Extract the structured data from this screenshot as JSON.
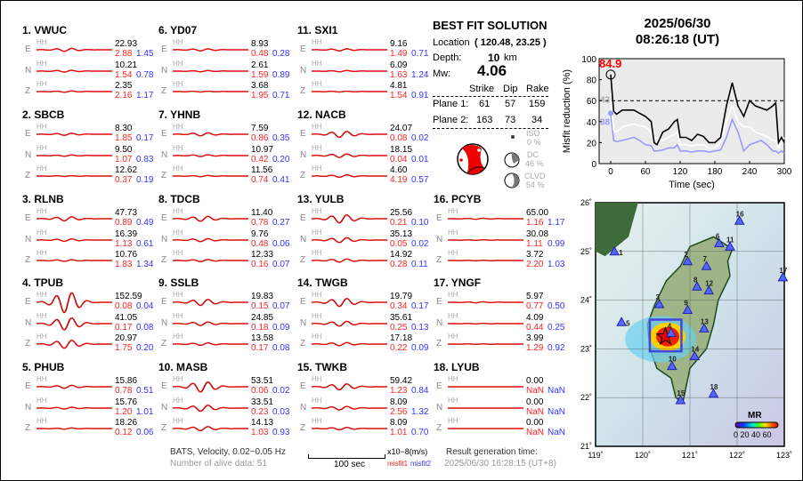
{
  "stations": [
    {
      "label": "1.  VWUC",
      "traces": [
        {
          "comp": "E",
          "band": "HH",
          "amp": "22.93",
          "misfit1": "2.88",
          "misfit2": "1.45"
        },
        {
          "comp": "N",
          "band": "HH",
          "amp": "10.21",
          "misfit1": "1.54",
          "misfit2": "0.78"
        },
        {
          "comp": "Z",
          "band": "HH",
          "amp": "2.35",
          "misfit1": "2.16",
          "misfit2": "1.17"
        }
      ]
    },
    {
      "label": "2.  SBCB",
      "traces": [
        {
          "comp": "E",
          "band": "HH",
          "amp": "8.30",
          "misfit1": "1.85",
          "misfit2": "0.17"
        },
        {
          "comp": "N",
          "band": "HH",
          "amp": "9.50",
          "misfit1": "1.07",
          "misfit2": "0.83"
        },
        {
          "comp": "Z",
          "band": "HH",
          "amp": "12.62",
          "misfit1": "0.37",
          "misfit2": "0.19"
        }
      ]
    },
    {
      "label": "3.  RLNB",
      "traces": [
        {
          "comp": "E",
          "band": "HH",
          "amp": "47.73",
          "misfit1": "0.89",
          "misfit2": "0.49"
        },
        {
          "comp": "N",
          "band": "HH",
          "amp": "16.39",
          "misfit1": "1.13",
          "misfit2": "0.61"
        },
        {
          "comp": "Z",
          "band": "HH",
          "amp": "10.76",
          "misfit1": "1.83",
          "misfit2": "1.34"
        }
      ]
    },
    {
      "label": "4.  TPUB",
      "traces": [
        {
          "comp": "E",
          "band": "HH",
          "amp": "152.59",
          "misfit1": "0.08",
          "misfit2": "0.04"
        },
        {
          "comp": "N",
          "band": "HH",
          "amp": "41.05",
          "misfit1": "0.17",
          "misfit2": "0.08"
        },
        {
          "comp": "Z",
          "band": "HH",
          "amp": "20.97",
          "misfit1": "1.75",
          "misfit2": "0.20"
        }
      ]
    },
    {
      "label": "5.  PHUB",
      "traces": [
        {
          "comp": "E",
          "band": "HH",
          "amp": "15.86",
          "misfit1": "0.78",
          "misfit2": "0.51"
        },
        {
          "comp": "N",
          "band": "HH",
          "amp": "15.76",
          "misfit1": "1.20",
          "misfit2": "1.01"
        },
        {
          "comp": "Z",
          "band": "HH",
          "amp": "18.26",
          "misfit1": "0.12",
          "misfit2": "0.06"
        }
      ]
    },
    {
      "label": "6.  YD07",
      "traces": [
        {
          "comp": "E",
          "band": "HH",
          "amp": "8.93",
          "misfit1": "0.48",
          "misfit2": "0.28"
        },
        {
          "comp": "N",
          "band": "HH",
          "amp": "2.61",
          "misfit1": "1.59",
          "misfit2": "0.89"
        },
        {
          "comp": "Z",
          "band": "HH",
          "amp": "3.68",
          "misfit1": "1.95",
          "misfit2": "0.71"
        }
      ]
    },
    {
      "label": "7.  YHNB",
      "traces": [
        {
          "comp": "E",
          "band": "HH",
          "amp": "7.59",
          "misfit1": "0.86",
          "misfit2": "0.35"
        },
        {
          "comp": "N",
          "band": "HH",
          "amp": "10.97",
          "misfit1": "0.42",
          "misfit2": "0.20"
        },
        {
          "comp": "Z",
          "band": "HH",
          "amp": "11.56",
          "misfit1": "0.74",
          "misfit2": "0.41"
        }
      ]
    },
    {
      "label": "8.  TDCB",
      "traces": [
        {
          "comp": "E",
          "band": "HH",
          "amp": "11.40",
          "misfit1": "0.78",
          "misfit2": "0.27"
        },
        {
          "comp": "N",
          "band": "HH",
          "amp": "9.76",
          "misfit1": "0.48",
          "misfit2": "0.06"
        },
        {
          "comp": "Z",
          "band": "HH",
          "amp": "12.33",
          "misfit1": "0.16",
          "misfit2": "0.07"
        }
      ]
    },
    {
      "label": "9.  SSLB",
      "traces": [
        {
          "comp": "E",
          "band": "HH",
          "amp": "19.83",
          "misfit1": "0.15",
          "misfit2": "0.07"
        },
        {
          "comp": "N",
          "band": "HH",
          "amp": "24.85",
          "misfit1": "0.18",
          "misfit2": "0.09"
        },
        {
          "comp": "Z",
          "band": "HH",
          "amp": "13.58",
          "misfit1": "0.17",
          "misfit2": "0.08"
        }
      ]
    },
    {
      "label": "10. MASB",
      "traces": [
        {
          "comp": "E",
          "band": "HH",
          "amp": "53.51",
          "misfit1": "0.06",
          "misfit2": "0.02"
        },
        {
          "comp": "N",
          "band": "HH",
          "amp": "33.51",
          "misfit1": "0.23",
          "misfit2": "0.03"
        },
        {
          "comp": "Z",
          "band": "HH",
          "amp": "14.13",
          "misfit1": "1.03",
          "misfit2": "0.93"
        }
      ]
    },
    {
      "label": "11. SXI1",
      "traces": [
        {
          "comp": "E",
          "band": "HH",
          "amp": "9.16",
          "misfit1": "1.49",
          "misfit2": "0.71"
        },
        {
          "comp": "N",
          "band": "HH",
          "amp": "6.09",
          "misfit1": "1.63",
          "misfit2": "1.24"
        },
        {
          "comp": "Z",
          "band": "HH",
          "amp": "4.81",
          "misfit1": "1.54",
          "misfit2": "0.91"
        }
      ]
    },
    {
      "label": "12. NACB",
      "traces": [
        {
          "comp": "E",
          "band": "HH",
          "amp": "24.07",
          "misfit1": "0.08",
          "misfit2": "0.02"
        },
        {
          "comp": "N",
          "band": "HH",
          "amp": "18.15",
          "misfit1": "0.04",
          "misfit2": "0.01"
        },
        {
          "comp": "Z",
          "band": "HH",
          "amp": "4.60",
          "misfit1": "4.19",
          "misfit2": "0.57"
        }
      ]
    },
    {
      "label": "13. YULB",
      "traces": [
        {
          "comp": "E",
          "band": "HH",
          "amp": "25.56",
          "misfit1": "0.21",
          "misfit2": "0.10"
        },
        {
          "comp": "N",
          "band": "HH",
          "amp": "35.13",
          "misfit1": "0.05",
          "misfit2": "0.02"
        },
        {
          "comp": "Z",
          "band": "HH",
          "amp": "14.92",
          "misfit1": "0.28",
          "misfit2": "0.11"
        }
      ]
    },
    {
      "label": "14. TWGB",
      "traces": [
        {
          "comp": "E",
          "band": "HH",
          "amp": "19.79",
          "misfit1": "0.34",
          "misfit2": "0.17"
        },
        {
          "comp": "N",
          "band": "HH",
          "amp": "35.61",
          "misfit1": "0.25",
          "misfit2": "0.13"
        },
        {
          "comp": "Z",
          "band": "HH",
          "amp": "17.18",
          "misfit1": "0.22",
          "misfit2": "0.09"
        }
      ]
    },
    {
      "label": "15. TWKB",
      "traces": [
        {
          "comp": "E",
          "band": "HH",
          "amp": "59.42",
          "misfit1": "1.23",
          "misfit2": "0.84"
        },
        {
          "comp": "N",
          "band": "HH",
          "amp": "8.09",
          "misfit1": "2.56",
          "misfit2": "1.32"
        },
        {
          "comp": "Z",
          "band": "HH",
          "amp": "8.09",
          "misfit1": "1.01",
          "misfit2": "0.70"
        }
      ]
    },
    {
      "label": "16. PCYB",
      "traces": [
        {
          "comp": "E",
          "band": "HH",
          "amp": "65.00",
          "misfit1": "1.16",
          "misfit2": "1.17"
        },
        {
          "comp": "N",
          "band": "HH",
          "amp": "30.08",
          "misfit1": "1.11",
          "misfit2": "0.99"
        },
        {
          "comp": "Z",
          "band": "HH",
          "amp": "3.72",
          "misfit1": "2.20",
          "misfit2": "1.03"
        }
      ]
    },
    {
      "label": "17. YNGF",
      "traces": [
        {
          "comp": "E",
          "band": "HH",
          "amp": "5.97",
          "misfit1": "0.77",
          "misfit2": "0.50"
        },
        {
          "comp": "N",
          "band": "HH",
          "amp": "4.09",
          "misfit1": "0.44",
          "misfit2": "0.25"
        },
        {
          "comp": "Z",
          "band": "HH",
          "amp": "3.99",
          "misfit1": "1.29",
          "misfit2": "0.92"
        }
      ]
    },
    {
      "label": "18. LYUB",
      "traces": [
        {
          "comp": "E",
          "band": "HH",
          "amp": "0.00",
          "misfit1": "NaN",
          "misfit2": "NaN"
        },
        {
          "comp": "N",
          "band": "HH",
          "amp": "0.00",
          "misfit1": "NaN",
          "misfit2": "NaN"
        },
        {
          "comp": "Z",
          "band": "HH",
          "amp": "0.00",
          "misfit1": "NaN",
          "misfit2": "NaN"
        }
      ]
    }
  ],
  "solution": {
    "title": "BEST FIT SOLUTION",
    "location_label": "Location",
    "location_value": "( 120.48,  23.25 )",
    "depth_label": "Depth:",
    "depth_value": "10",
    "depth_unit": "km",
    "mw_label": "Mw:",
    "mw_value": "4.06",
    "headers": [
      "Strike",
      "Dip",
      "Rake"
    ],
    "planes": [
      {
        "label": "Plane 1:",
        "values": [
          "61",
          "57",
          "159"
        ]
      },
      {
        "label": "Plane 2:",
        "values": [
          "163",
          "73",
          "34"
        ]
      }
    ],
    "iso_label": "ISO",
    "iso_value": "0  %",
    "dc_label": "DC",
    "dc_value": "46 %",
    "clvd_label": "CLVD",
    "clvd_value": "54 %"
  },
  "footer": {
    "filter": "BATS, Velocity, 0.02−0.05 Hz",
    "alive": "Number of alive data: 51",
    "unit": "x10−8(m/s)",
    "scale": "100 sec",
    "misfit1": "misfit1",
    "misfit2": "misfit2",
    "gen_label": "Result generation time:",
    "gen_time": "2025/06/30 16:28:15 (UT+8)"
  },
  "header": {
    "date": "2025/06/30",
    "time": "08:26:18  (UT)"
  },
  "colors": {
    "observed": "#000000",
    "synthetic": "#ff0000",
    "misfit1": "#ff2222",
    "misfit2": "#3333ff",
    "mr_black": "#000000",
    "mr_white": "#ffffff",
    "mr_blue": "#9999ff"
  },
  "chart_data": {
    "type": "line",
    "xlabel": "Time (sec)",
    "ylabel": "Misfit reduction (%)",
    "xlim": [
      -20,
      300
    ],
    "ylim": [
      0,
      100
    ],
    "xticks": [
      "0",
      "60",
      "120",
      "180",
      "240",
      "300"
    ],
    "yticks": [
      "0",
      "20",
      "40",
      "60",
      "80",
      "100"
    ],
    "threshold": 60,
    "annotations": {
      "peak": "84.9",
      "white_start": "43",
      "blue_start": "38"
    },
    "x": [
      0,
      5,
      10,
      20,
      40,
      50,
      60,
      70,
      75,
      80,
      90,
      100,
      110,
      115,
      120,
      130,
      140,
      150,
      160,
      170,
      180,
      190,
      200,
      210,
      220,
      230,
      240,
      250,
      260,
      270,
      280,
      285,
      290,
      295,
      300
    ],
    "series": [
      {
        "color": "#000000",
        "values": [
          84.9,
          50,
          47,
          51,
          51,
          48,
          45,
          40,
          20,
          18,
          30,
          33,
          40,
          42,
          25,
          25,
          22,
          28,
          26,
          20,
          20,
          25,
          55,
          77,
          55,
          45,
          60,
          55,
          53,
          51,
          55,
          58,
          20,
          25,
          20
        ]
      },
      {
        "color": "#ffffff",
        "values": [
          60,
          32,
          30,
          35,
          38,
          36,
          35,
          30,
          25,
          24,
          22,
          25,
          28,
          30,
          18,
          18,
          17,
          18,
          18,
          15,
          15,
          20,
          40,
          55,
          40,
          35,
          35,
          30,
          28,
          26,
          22,
          22,
          15,
          20,
          25
        ]
      },
      {
        "color": "#9999ff",
        "values": [
          48,
          22,
          21,
          22,
          25,
          22,
          18,
          17,
          12,
          12,
          13,
          15,
          15,
          18,
          12,
          12,
          11,
          12,
          12,
          11,
          12,
          13,
          25,
          42,
          30,
          12,
          18,
          20,
          22,
          18,
          12,
          12,
          10,
          12,
          10
        ]
      }
    ]
  },
  "map": {
    "lon_ticks": [
      "119˚",
      "120˚",
      "121˚",
      "122˚",
      "123˚"
    ],
    "lat_ticks": [
      "21˚",
      "22˚",
      "23˚",
      "24˚",
      "25˚",
      "26˚"
    ],
    "colorbar_label": "MR",
    "colorbar_ticks": "0 20 40 60",
    "epicenter": {
      "lon": 120.48,
      "lat": 23.25
    },
    "stations": [
      {
        "id": "1",
        "lon": 119.4,
        "lat": 25.0
      },
      {
        "id": "2",
        "lon": 120.95,
        "lat": 24.8
      },
      {
        "id": "3",
        "lon": 120.35,
        "lat": 23.92
      },
      {
        "id": "4",
        "lon": 120.6,
        "lat": 23.33
      },
      {
        "id": "5",
        "lon": 119.55,
        "lat": 23.55
      },
      {
        "id": "6",
        "lon": 121.62,
        "lat": 25.17
      },
      {
        "id": "7",
        "lon": 121.35,
        "lat": 24.7
      },
      {
        "id": "8",
        "lon": 121.15,
        "lat": 24.28
      },
      {
        "id": "9",
        "lon": 120.95,
        "lat": 23.8
      },
      {
        "id": "10",
        "lon": 120.62,
        "lat": 22.65
      },
      {
        "id": "11",
        "lon": 121.85,
        "lat": 25.1
      },
      {
        "id": "12",
        "lon": 121.4,
        "lat": 24.2
      },
      {
        "id": "13",
        "lon": 121.3,
        "lat": 23.42
      },
      {
        "id": "14",
        "lon": 121.1,
        "lat": 22.85
      },
      {
        "id": "15",
        "lon": 120.8,
        "lat": 21.95
      },
      {
        "id": "16",
        "lon": 122.05,
        "lat": 25.63
      },
      {
        "id": "17",
        "lon": 122.97,
        "lat": 24.47
      },
      {
        "id": "18",
        "lon": 121.5,
        "lat": 22.08
      }
    ]
  }
}
